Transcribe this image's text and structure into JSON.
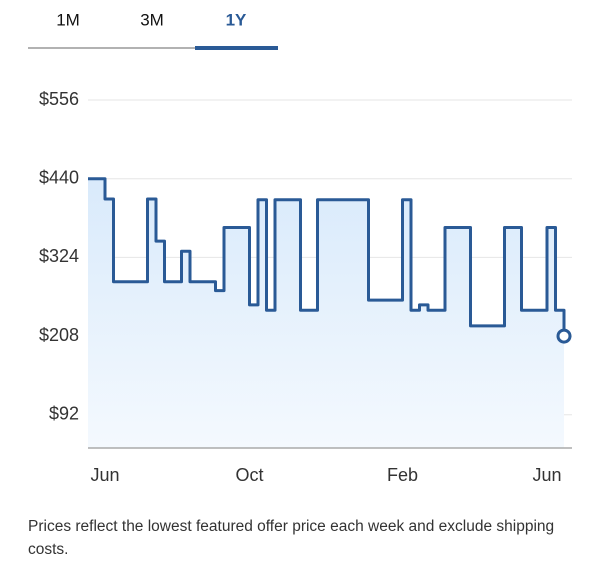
{
  "tabs": [
    "1M",
    "3M",
    "1Y"
  ],
  "active_tab": 2,
  "chart_data": {
    "type": "line",
    "step": true,
    "color": "#2a5a96",
    "fill_color": "#e3f0fc",
    "categories": [
      null,
      null,
      "Jun",
      null,
      null,
      null,
      null,
      null,
      null,
      null,
      null,
      null,
      null,
      null,
      null,
      null,
      null,
      null,
      null,
      "Oct",
      null,
      null,
      null,
      null,
      null,
      null,
      null,
      null,
      null,
      null,
      null,
      null,
      null,
      null,
      null,
      null,
      null,
      "Feb",
      null,
      null,
      null,
      null,
      null,
      null,
      null,
      null,
      null,
      null,
      null,
      null,
      null,
      null,
      null,
      null,
      "Jun",
      null,
      null
    ],
    "values": [
      440,
      440,
      410,
      288,
      288,
      288,
      288,
      410,
      348,
      288,
      288,
      333,
      288,
      288,
      288,
      275,
      368,
      368,
      368,
      254,
      409,
      246,
      409,
      409,
      409,
      246,
      246,
      409,
      409,
      409,
      409,
      409,
      409,
      261,
      261,
      261,
      261,
      409,
      246,
      254,
      246,
      246,
      368,
      368,
      368,
      223,
      223,
      223,
      223,
      368,
      368,
      246,
      246,
      246,
      368,
      246,
      208
    ],
    "ylim": [
      43,
      556
    ],
    "yticks": [
      {
        "value": 92,
        "label": "$92"
      },
      {
        "value": 208,
        "label": "$208"
      },
      {
        "value": 324,
        "label": "$324"
      },
      {
        "value": 440,
        "label": "$440"
      },
      {
        "value": 556,
        "label": "$556"
      }
    ],
    "grid": true
  },
  "note": "Prices reflect the lowest featured offer price each week and exclude shipping costs."
}
